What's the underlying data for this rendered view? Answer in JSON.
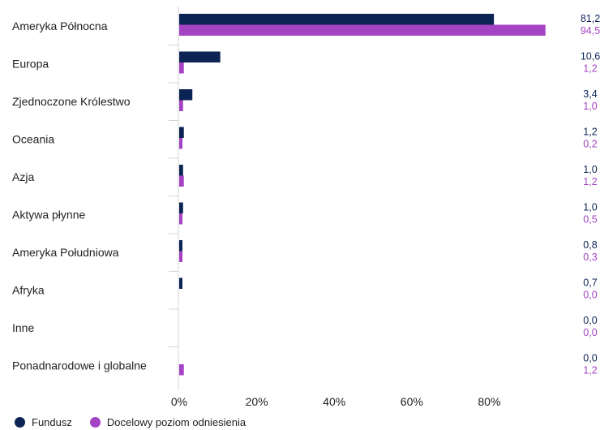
{
  "chart_data": {
    "type": "bar",
    "orientation": "horizontal",
    "categories": [
      "Ameryka Północna",
      "Europa",
      "Zjednoczone Królestwo",
      "Oceania",
      "Azja",
      "Aktywa płynne",
      "Ameryka Południowa",
      "Afryka",
      "Inne",
      "Ponadnarodowe i globalne"
    ],
    "series": [
      {
        "name": "Fundusz",
        "color": "#0b2454",
        "values": [
          81.2,
          10.6,
          3.4,
          1.2,
          1.0,
          1.0,
          0.8,
          0.7,
          0.0,
          0.0
        ],
        "labels": [
          "81,2",
          "10,6",
          "3,4",
          "1,2",
          "1,0",
          "1,0",
          "0,8",
          "0,7",
          "0,0",
          "0,0"
        ]
      },
      {
        "name": "Docelowy poziom odniesienia",
        "color": "#a443c3",
        "values": [
          94.5,
          1.2,
          1.0,
          0.2,
          1.2,
          0.5,
          0.3,
          0.0,
          0.0,
          1.2
        ],
        "labels": [
          "94,5",
          "1,2",
          "1,0",
          "0,2",
          "1,2",
          "0,5",
          "0,3",
          "0,0",
          "0,0",
          "1,2"
        ]
      }
    ],
    "xlim": [
      0,
      100
    ],
    "x_ticks": [
      0,
      20,
      40,
      60,
      80
    ],
    "x_tick_labels": [
      "0%",
      "20%",
      "40%",
      "60%",
      "80%"
    ],
    "grid": false,
    "legend": "bottom-left"
  },
  "legend": {
    "items": [
      {
        "label": "Fundusz",
        "color": "#0b2454"
      },
      {
        "label": "Docelowy poziom odniesienia",
        "color": "#a443c3"
      }
    ]
  }
}
